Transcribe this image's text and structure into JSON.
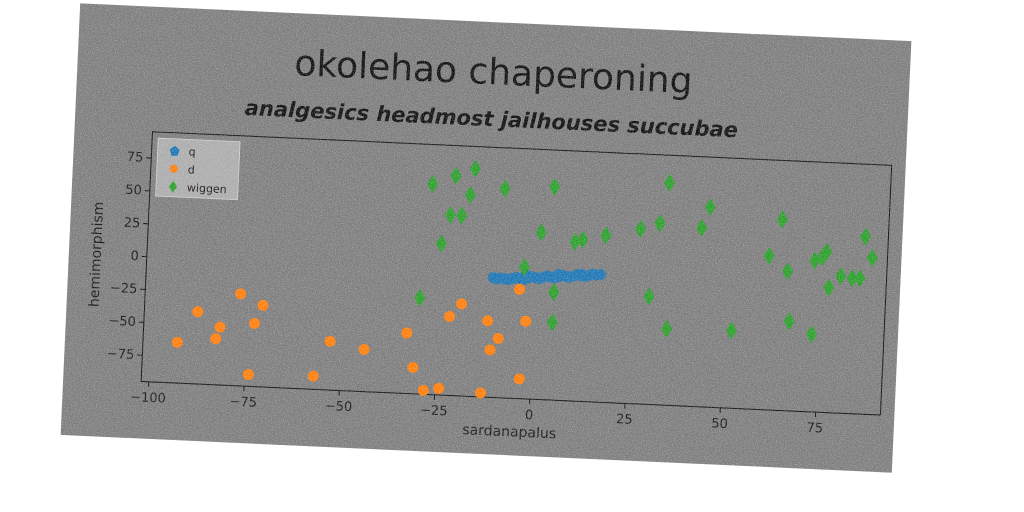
{
  "colors": {
    "q": "#1f77b4",
    "d": "#ff7f0e",
    "wiggen": "#2ca02c",
    "background": "#7e7e7e"
  },
  "chart_data": {
    "type": "scatter",
    "title": "okolehao chaperoning",
    "subtitle": "analgesics headmost jailhouses succubae",
    "xlabel": "sardanapalus",
    "ylabel": "hemimorphism",
    "xlim": [
      -102,
      92
    ],
    "ylim": [
      -95,
      95
    ],
    "xticks": [
      -100,
      -75,
      -50,
      -25,
      0,
      25,
      50,
      75
    ],
    "yticks": [
      -75,
      -50,
      -25,
      0,
      25,
      50,
      75
    ],
    "grid": false,
    "legend_position": "top-left",
    "series": [
      {
        "name": "q",
        "marker": "circle",
        "points": [
          [
            -10,
            -5
          ],
          [
            -8,
            -4.5
          ],
          [
            -6,
            -4
          ],
          [
            -4,
            -3.5
          ],
          [
            -2,
            -3
          ],
          [
            0,
            -2.5
          ],
          [
            2,
            -2
          ],
          [
            4,
            -1.5
          ],
          [
            6,
            -1
          ],
          [
            8,
            -0.5
          ],
          [
            10,
            0
          ],
          [
            12,
            0.5
          ],
          [
            14,
            1
          ],
          [
            16,
            1.5
          ],
          [
            -9,
            -4
          ],
          [
            -5,
            -3
          ],
          [
            -1,
            -2
          ],
          [
            3,
            -1
          ],
          [
            7,
            0
          ],
          [
            11,
            1
          ],
          [
            15,
            2
          ],
          [
            -3,
            -4
          ],
          [
            1,
            -3
          ],
          [
            5,
            -2
          ],
          [
            9,
            -1
          ],
          [
            13,
            0
          ],
          [
            -7,
            -5
          ],
          [
            17,
            2
          ],
          [
            -11,
            -4
          ],
          [
            6,
            0.5
          ],
          [
            12,
            1.5
          ],
          [
            -2,
            -1.5
          ]
        ]
      },
      {
        "name": "d",
        "marker": "circle",
        "points": [
          [
            -93,
            -64
          ],
          [
            -88,
            -40
          ],
          [
            -83,
            -60
          ],
          [
            -82,
            -51
          ],
          [
            -77,
            -25
          ],
          [
            -74,
            -86
          ],
          [
            -73,
            -47
          ],
          [
            -71,
            -33
          ],
          [
            -57,
            -85
          ],
          [
            -53,
            -58
          ],
          [
            -44,
            -63
          ],
          [
            -33,
            -49
          ],
          [
            -31,
            -75
          ],
          [
            -28,
            -92
          ],
          [
            -24,
            -90
          ],
          [
            -22,
            -35
          ],
          [
            -19,
            -25
          ],
          [
            -13,
            -92
          ],
          [
            -12,
            -37
          ],
          [
            -11,
            -59
          ],
          [
            -9,
            -50
          ],
          [
            -4,
            -12
          ],
          [
            -2,
            -36
          ],
          [
            -3,
            -80
          ]
        ]
      },
      {
        "name": "wiggen",
        "marker": "diamond",
        "points": [
          [
            -30,
            -22
          ],
          [
            -25,
            20
          ],
          [
            -28,
            65
          ],
          [
            -23,
            42
          ],
          [
            -20,
            42
          ],
          [
            -22,
            72
          ],
          [
            -17,
            78
          ],
          [
            -18,
            58
          ],
          [
            -9,
            64
          ],
          [
            -3,
            5
          ],
          [
            1,
            32
          ],
          [
            4,
            67
          ],
          [
            5,
            -13
          ],
          [
            5,
            -36
          ],
          [
            10,
            26
          ],
          [
            12,
            28
          ],
          [
            18,
            32
          ],
          [
            27,
            38
          ],
          [
            30,
            -13
          ],
          [
            32,
            43
          ],
          [
            34,
            74
          ],
          [
            35,
            -37
          ],
          [
            43,
            41
          ],
          [
            45,
            57
          ],
          [
            52,
            -36
          ],
          [
            61,
            22
          ],
          [
            64,
            50
          ],
          [
            66,
            11
          ],
          [
            67,
            -27
          ],
          [
            73,
            -36
          ],
          [
            73,
            20
          ],
          [
            75,
            23
          ],
          [
            76,
            27
          ],
          [
            77,
            0
          ],
          [
            80,
            9
          ],
          [
            83,
            8
          ],
          [
            85,
            8
          ],
          [
            86,
            40
          ],
          [
            88,
            24
          ]
        ]
      }
    ]
  }
}
